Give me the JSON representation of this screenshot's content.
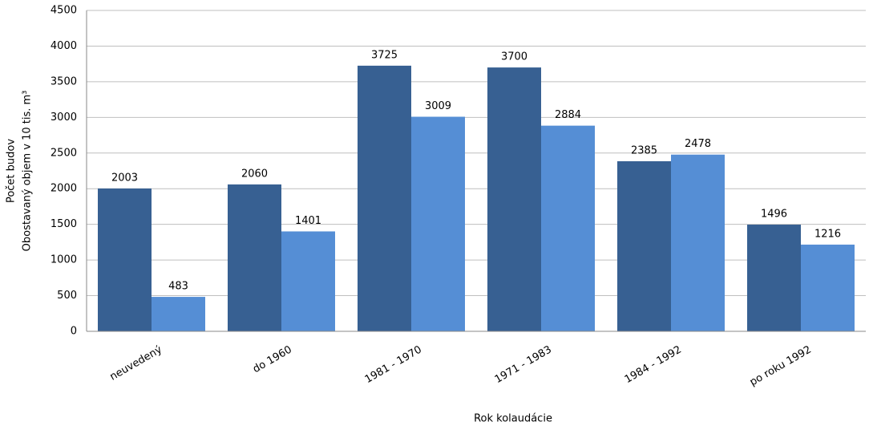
{
  "chart_data": {
    "type": "bar",
    "y_label": [
      "Počet budov",
      "Obostavaný objem v 10 tis. m³"
    ],
    "x_label": "Rok kolaudácie",
    "categories": [
      "neuvedený",
      "do 1960",
      "1981 - 1970",
      "1971 - 1983",
      "1984 - 1992",
      "po roku 1992"
    ],
    "series": [
      {
        "color": "#376092",
        "values": [
          2003,
          2060,
          3725,
          3700,
          2385,
          1496
        ]
      },
      {
        "color": "#558ed5",
        "values": [
          483,
          1401,
          3009,
          2884,
          2478,
          1216
        ]
      }
    ],
    "ylim": [
      0,
      4500
    ],
    "yticks": [
      0,
      500,
      1000,
      1500,
      2000,
      2500,
      3000,
      3500,
      4000,
      4500
    ],
    "grid": true
  }
}
